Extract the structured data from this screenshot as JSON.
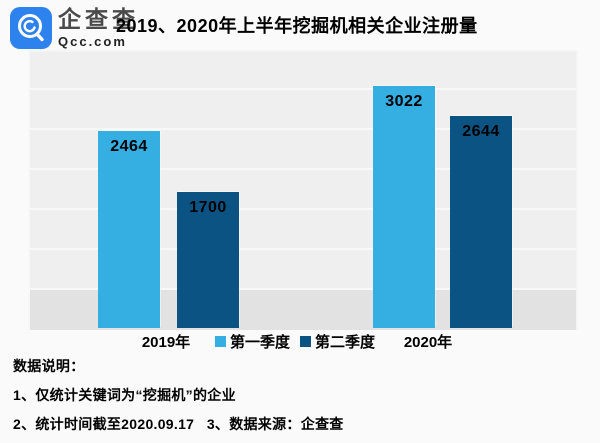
{
  "header": {
    "brand": "企查查",
    "brand_domain": "Qcc.com",
    "brand_color": "#2e82ee",
    "title": "2019、2020年上半年挖掘机相关企业注册量"
  },
  "chart_data": {
    "type": "bar",
    "title": "2019、2020年上半年挖掘机相关企业注册量",
    "categories": [
      "2019年",
      "2020年"
    ],
    "series": [
      {
        "name": "第一季度",
        "color": "#35aee2",
        "values": [
          2464,
          3022
        ]
      },
      {
        "name": "第二季度",
        "color": "#0b5382",
        "values": [
          1700,
          2644
        ]
      }
    ],
    "ylim": [
      0,
      3500
    ],
    "grid": true,
    "gridline_step": 500,
    "legend_position": "bottom",
    "value_labels": "inside-top",
    "plot_background": "#efefef"
  },
  "notes": {
    "heading": "数据说明：",
    "line1": "1、仅统计关键词为“挖掘机”的企业",
    "line2": "2、统计时间截至2020.09.17   3、数据来源：企查查"
  }
}
